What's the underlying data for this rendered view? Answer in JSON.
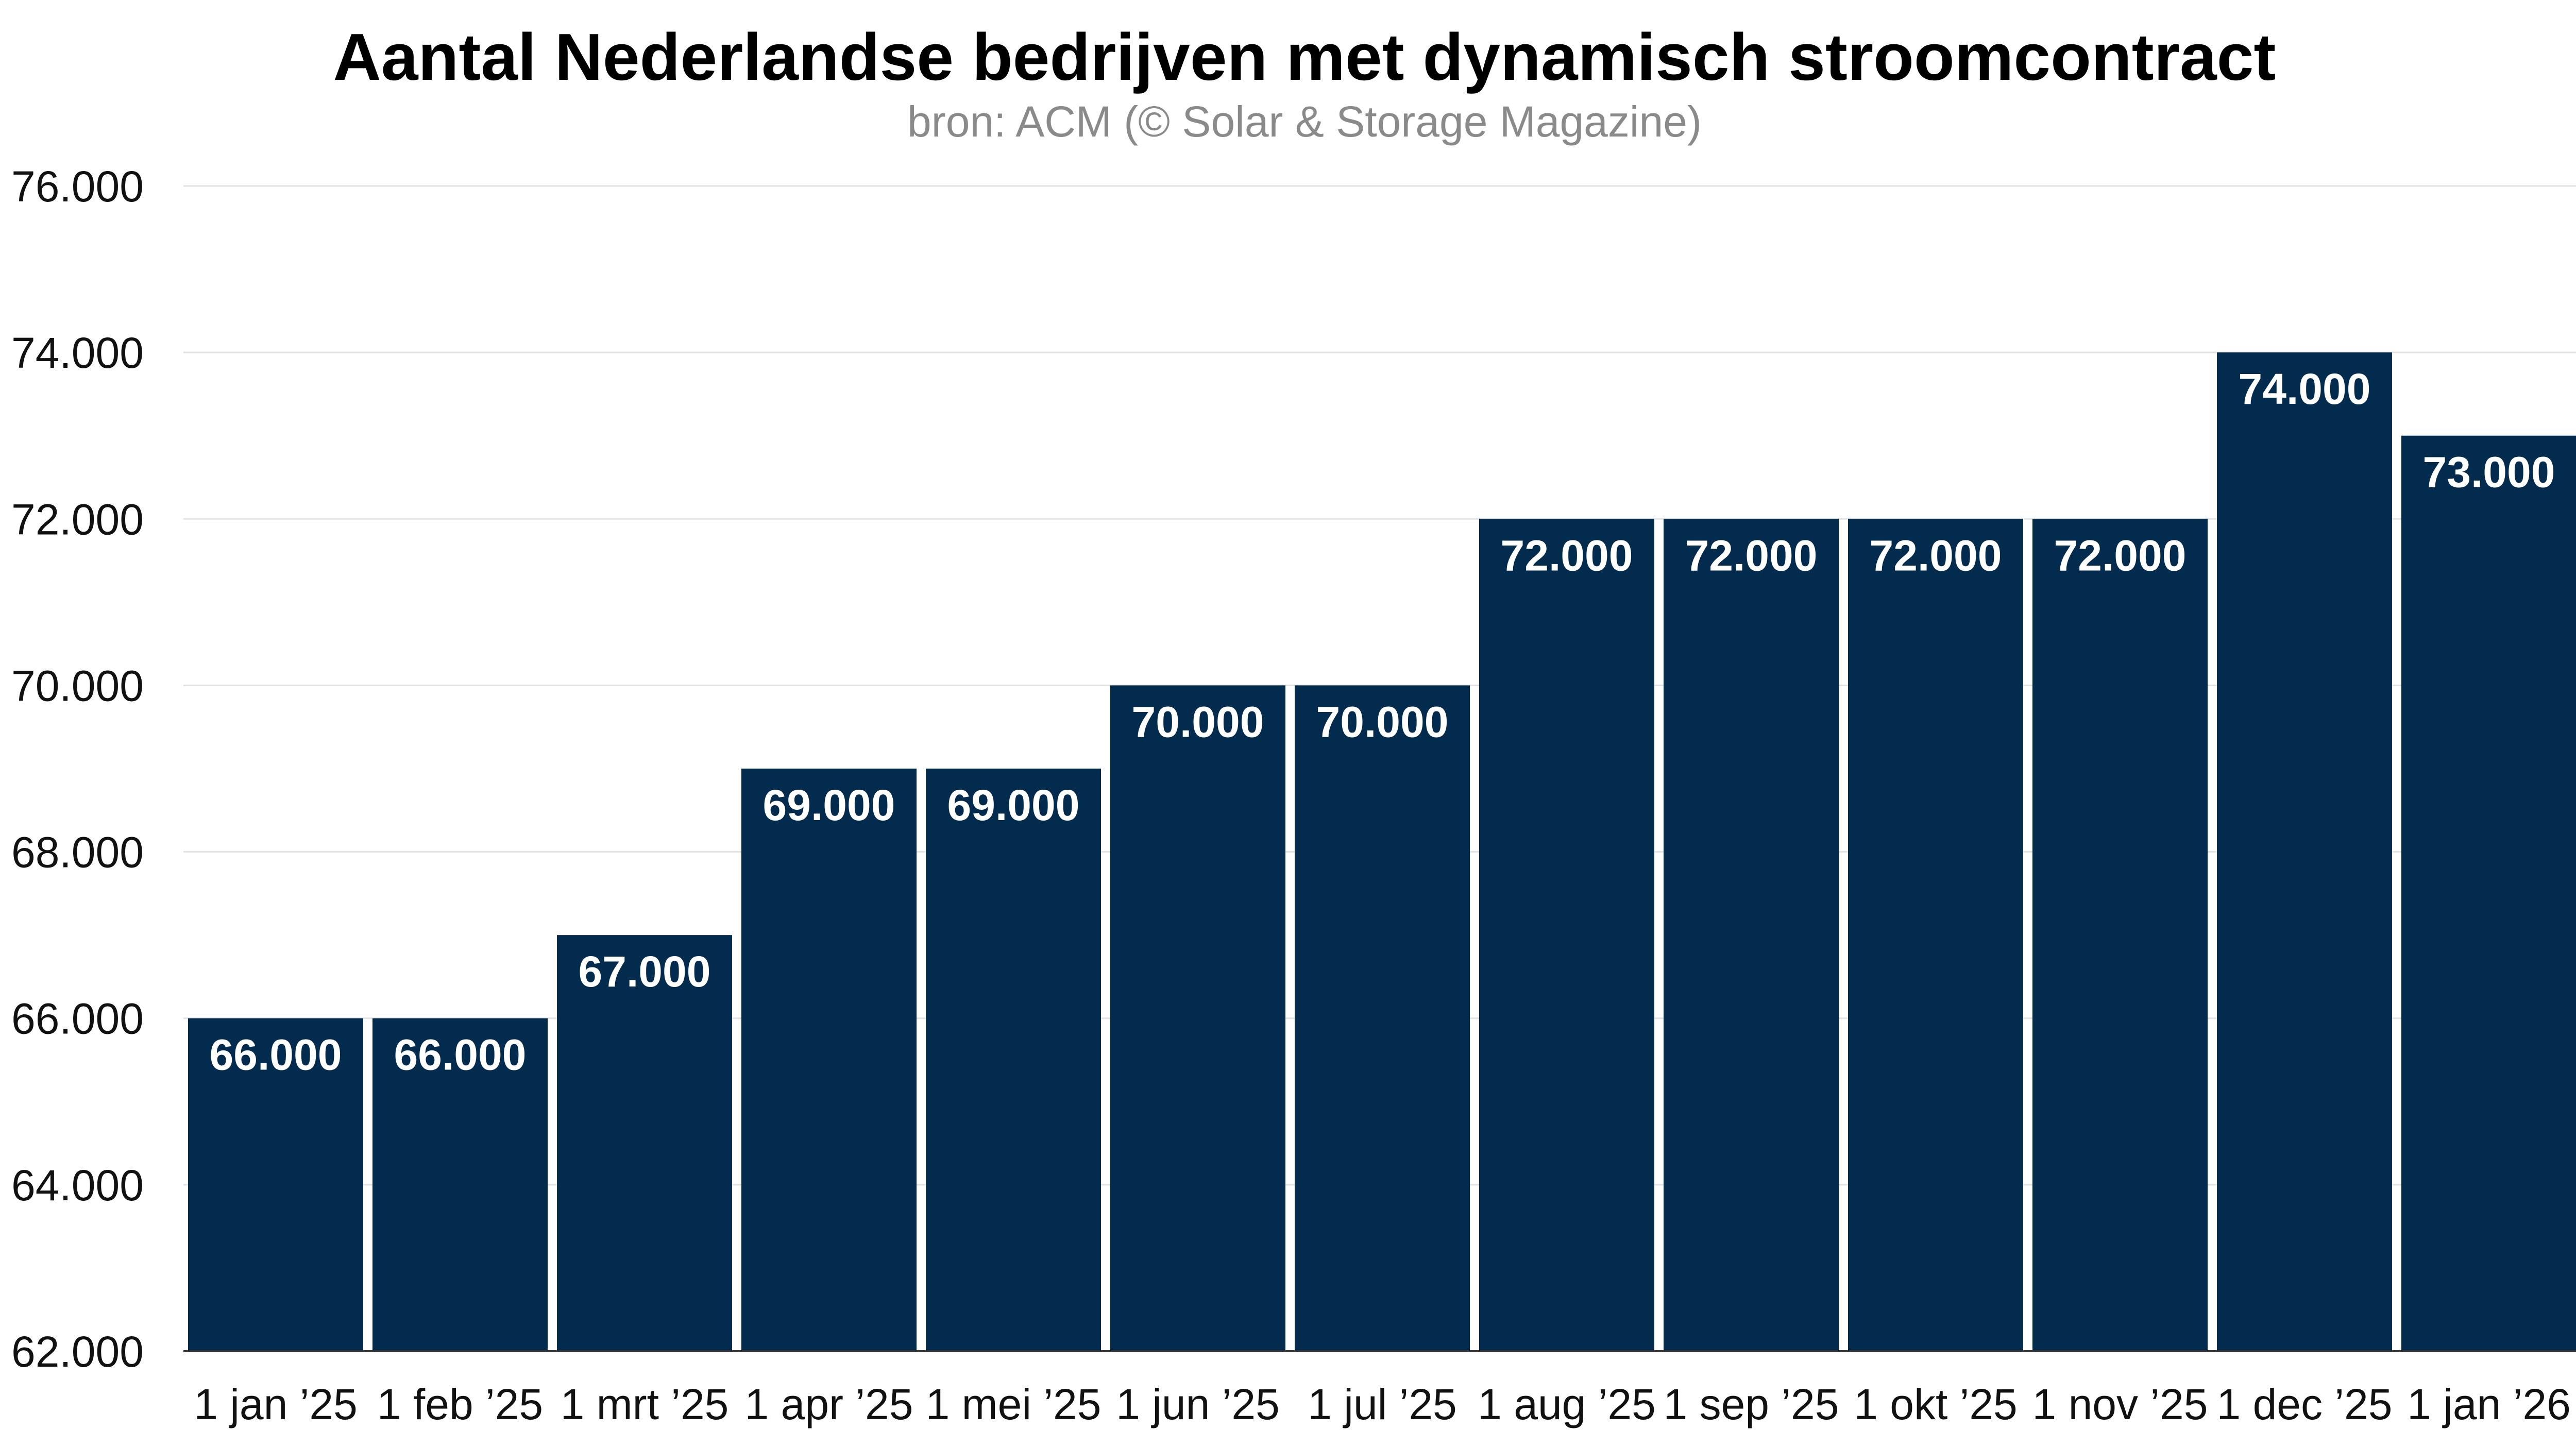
{
  "chart_data": {
    "type": "bar",
    "title": "Aantal Nederlandse bedrijven met dynamisch stroomcontract",
    "subtitle": "bron: ACM (© Solar & Storage Magazine)",
    "categories": [
      "1 jan ’25",
      "1 feb ’25",
      "1 mrt ’25",
      "1 apr ’25",
      "1 mei ’25",
      "1 jun ’25",
      "1 jul ’25",
      "1 aug ’25",
      "1 sep ’25",
      "1 okt ’25",
      "1 nov ’25",
      "1 dec ’25",
      "1 jan ’26"
    ],
    "values": [
      66000,
      66000,
      67000,
      69000,
      69000,
      70000,
      70000,
      72000,
      72000,
      72000,
      72000,
      74000,
      73000
    ],
    "value_labels": [
      "66.000",
      "66.000",
      "67.000",
      "69.000",
      "69.000",
      "70.000",
      "70.000",
      "72.000",
      "72.000",
      "72.000",
      "72.000",
      "74.000",
      "73.000"
    ],
    "xlabel": "",
    "ylabel": "",
    "ylim": [
      62000,
      76000
    ],
    "yticks": [
      62000,
      64000,
      66000,
      68000,
      70000,
      72000,
      74000,
      76000
    ],
    "ytick_labels": [
      "62.000",
      "64.000",
      "66.000",
      "68.000",
      "70.000",
      "72.000",
      "74.000",
      "76.000"
    ],
    "grid": true,
    "legend": "none",
    "colors": {
      "bar": "#022B4E",
      "bar_label": "#ffffff",
      "grid": "#e2e2e2",
      "subtitle": "#8a8a8a"
    }
  }
}
